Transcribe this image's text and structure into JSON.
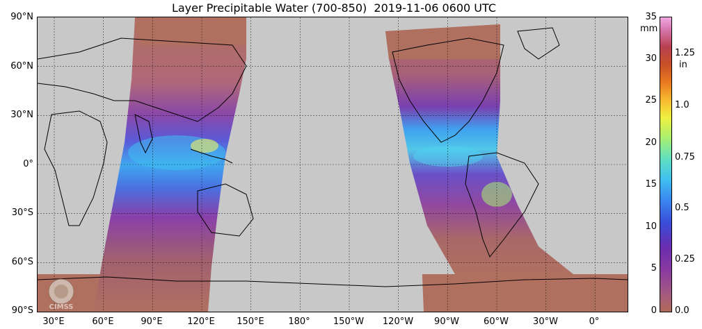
{
  "title": "Layer Precipitable Water (700-850)  2019-11-06 0600 UTC",
  "map": {
    "lat_labels": [
      "90°N",
      "60°N",
      "30°N",
      "0°",
      "30°S",
      "60°S",
      "90°S"
    ],
    "lon_labels": [
      "30°E",
      "60°E",
      "90°E",
      "120°E",
      "150°E",
      "180°",
      "150°W",
      "120°W",
      "90°W",
      "60°W",
      "30°W",
      "0°"
    ],
    "no_data_color": "#c8c8c8",
    "logo_text": "CIMSS"
  },
  "colorbar": {
    "left_unit": "mm",
    "left_ticks": [
      "35",
      "30",
      "25",
      "20",
      "15",
      "10",
      "5",
      "0"
    ],
    "right_unit": "in",
    "right_ticks": [
      "1.25",
      "1.0",
      "0.75",
      "0.5",
      "0.25",
      "0.0"
    ]
  }
}
